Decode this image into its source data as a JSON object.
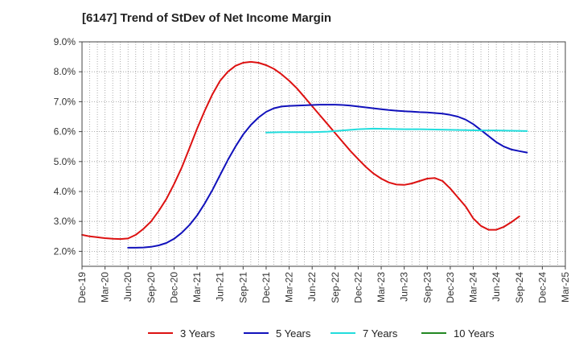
{
  "chart_data": {
    "type": "line",
    "title": "[6147]  Trend of StDev of Net Income Margin",
    "xlabel": "",
    "ylabel": "",
    "y_tick_labels": [
      "2.0%",
      "3.0%",
      "4.0%",
      "5.0%",
      "6.0%",
      "7.0%",
      "8.0%",
      "9.0%"
    ],
    "ylim": [
      1.5,
      9.0
    ],
    "x_tick_labels": [
      "Dec-19",
      "Mar-20",
      "Jun-20",
      "Sep-20",
      "Dec-20",
      "Mar-21",
      "Jun-21",
      "Sep-21",
      "Dec-21",
      "Mar-22",
      "Jun-22",
      "Sep-22",
      "Dec-22",
      "Mar-23",
      "Jun-23",
      "Sep-23",
      "Dec-23",
      "Mar-24",
      "Jun-24",
      "Sep-24",
      "Dec-24",
      "Mar-25"
    ],
    "grid": true,
    "legend_position": "bottom",
    "series": [
      {
        "name": "3 Years",
        "color": "#dd1111",
        "values": [
          [
            0,
            2.55
          ],
          [
            1,
            2.5
          ],
          [
            2,
            2.47
          ],
          [
            3,
            2.44
          ],
          [
            4,
            2.42
          ],
          [
            5,
            2.41
          ],
          [
            6,
            2.43
          ],
          [
            7,
            2.55
          ],
          [
            8,
            2.75
          ],
          [
            9,
            3.0
          ],
          [
            10,
            3.35
          ],
          [
            11,
            3.75
          ],
          [
            12,
            4.25
          ],
          [
            13,
            4.8
          ],
          [
            14,
            5.45
          ],
          [
            15,
            6.1
          ],
          [
            16,
            6.7
          ],
          [
            17,
            7.25
          ],
          [
            18,
            7.7
          ],
          [
            19,
            8.0
          ],
          [
            20,
            8.2
          ],
          [
            21,
            8.3
          ],
          [
            22,
            8.33
          ],
          [
            23,
            8.3
          ],
          [
            24,
            8.22
          ],
          [
            25,
            8.1
          ],
          [
            26,
            7.92
          ],
          [
            27,
            7.7
          ],
          [
            28,
            7.45
          ],
          [
            29,
            7.15
          ],
          [
            30,
            6.85
          ],
          [
            31,
            6.55
          ],
          [
            32,
            6.25
          ],
          [
            33,
            5.95
          ],
          [
            34,
            5.65
          ],
          [
            35,
            5.35
          ],
          [
            36,
            5.08
          ],
          [
            37,
            4.82
          ],
          [
            38,
            4.6
          ],
          [
            39,
            4.43
          ],
          [
            40,
            4.3
          ],
          [
            41,
            4.23
          ],
          [
            42,
            4.22
          ],
          [
            43,
            4.27
          ],
          [
            44,
            4.35
          ],
          [
            45,
            4.43
          ],
          [
            46,
            4.45
          ],
          [
            47,
            4.35
          ],
          [
            48,
            4.1
          ],
          [
            49,
            3.8
          ],
          [
            50,
            3.5
          ],
          [
            51,
            3.1
          ],
          [
            52,
            2.85
          ],
          [
            53,
            2.72
          ],
          [
            54,
            2.72
          ],
          [
            55,
            2.82
          ],
          [
            56,
            2.98
          ],
          [
            57,
            3.17
          ]
        ]
      },
      {
        "name": "5 Years",
        "color": "#1111bb",
        "values": [
          [
            6,
            2.12
          ],
          [
            7,
            2.12
          ],
          [
            8,
            2.13
          ],
          [
            9,
            2.15
          ],
          [
            10,
            2.2
          ],
          [
            11,
            2.28
          ],
          [
            12,
            2.42
          ],
          [
            13,
            2.62
          ],
          [
            14,
            2.88
          ],
          [
            15,
            3.2
          ],
          [
            16,
            3.6
          ],
          [
            17,
            4.05
          ],
          [
            18,
            4.55
          ],
          [
            19,
            5.05
          ],
          [
            20,
            5.5
          ],
          [
            21,
            5.9
          ],
          [
            22,
            6.22
          ],
          [
            23,
            6.47
          ],
          [
            24,
            6.66
          ],
          [
            25,
            6.78
          ],
          [
            26,
            6.84
          ],
          [
            27,
            6.86
          ],
          [
            28,
            6.87
          ],
          [
            29,
            6.88
          ],
          [
            30,
            6.89
          ],
          [
            31,
            6.9
          ],
          [
            32,
            6.9
          ],
          [
            33,
            6.9
          ],
          [
            34,
            6.89
          ],
          [
            35,
            6.87
          ],
          [
            36,
            6.84
          ],
          [
            37,
            6.81
          ],
          [
            38,
            6.78
          ],
          [
            39,
            6.75
          ],
          [
            40,
            6.72
          ],
          [
            41,
            6.7
          ],
          [
            42,
            6.68
          ],
          [
            43,
            6.67
          ],
          [
            44,
            6.65
          ],
          [
            45,
            6.64
          ],
          [
            46,
            6.62
          ],
          [
            47,
            6.6
          ],
          [
            48,
            6.56
          ],
          [
            49,
            6.5
          ],
          [
            50,
            6.4
          ],
          [
            51,
            6.25
          ],
          [
            52,
            6.05
          ],
          [
            53,
            5.85
          ],
          [
            54,
            5.65
          ],
          [
            55,
            5.5
          ],
          [
            56,
            5.4
          ],
          [
            57,
            5.35
          ],
          [
            58,
            5.3
          ]
        ]
      },
      {
        "name": "7 Years",
        "color": "#22dddd",
        "values": [
          [
            24,
            5.97
          ],
          [
            26,
            5.98
          ],
          [
            28,
            5.98
          ],
          [
            30,
            5.98
          ],
          [
            32,
            6.0
          ],
          [
            34,
            6.04
          ],
          [
            36,
            6.08
          ],
          [
            38,
            6.1
          ],
          [
            40,
            6.09
          ],
          [
            42,
            6.08
          ],
          [
            44,
            6.08
          ],
          [
            46,
            6.07
          ],
          [
            48,
            6.06
          ],
          [
            50,
            6.05
          ],
          [
            52,
            6.04
          ],
          [
            54,
            6.04
          ],
          [
            56,
            6.03
          ],
          [
            58,
            6.02
          ]
        ]
      },
      {
        "name": "10 Years",
        "color": "#228822",
        "values": []
      }
    ]
  }
}
